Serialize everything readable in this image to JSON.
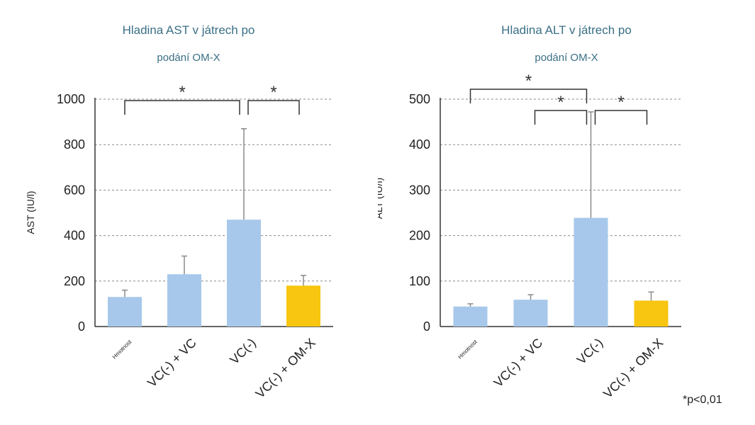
{
  "chart_data": [
    {
      "type": "bar",
      "title_line1": "Hladina AST v játrech po",
      "title_line2": "podání OM-X",
      "ylabel": "AST (IU/l)",
      "xlabel": "",
      "ylim": [
        0,
        1000
      ],
      "yticks": [
        "0",
        "200",
        "400",
        "600",
        "800",
        "1000"
      ],
      "categories": [
        "Hmotnost",
        "VC(-) + VC",
        "VC(-)",
        "VC(-) + OM-X"
      ],
      "values": [
        130,
        230,
        470,
        180
      ],
      "error_upper": [
        160,
        310,
        870,
        225
      ],
      "bar_colors": [
        "#a7c8ea",
        "#a7c8ea",
        "#a7c8ea",
        "#f8c510"
      ],
      "grid": true,
      "significance": [
        {
          "from": 0,
          "to": 2,
          "label": "*",
          "level": 0
        },
        {
          "from": 2,
          "to": 3,
          "label": "*",
          "level": 0
        }
      ]
    },
    {
      "type": "bar",
      "title_line1": "Hladina ALT v játrech po",
      "title_line2": "podání OM-X",
      "ylabel": "ALT (IU/l)",
      "xlabel": "",
      "ylim": [
        0,
        500
      ],
      "yticks": [
        "0",
        "100",
        "200",
        "300",
        "400",
        "500"
      ],
      "categories": [
        "Hmotnost",
        "VC(-) + VC",
        "VC(-)",
        "VC(-) + OM-X"
      ],
      "values": [
        44,
        59,
        239,
        57
      ],
      "error_upper": [
        50,
        70,
        472,
        76
      ],
      "bar_colors": [
        "#a7c8ea",
        "#a7c8ea",
        "#a7c8ea",
        "#f8c510"
      ],
      "grid": true,
      "significance": [
        {
          "from": 0,
          "to": 2,
          "label": "*",
          "level": 1
        },
        {
          "from": 1,
          "to": 2,
          "label": "*",
          "level": 0
        },
        {
          "from": 2,
          "to": 3,
          "label": "*",
          "level": 0
        }
      ]
    }
  ],
  "footnote": "*p<0,01"
}
